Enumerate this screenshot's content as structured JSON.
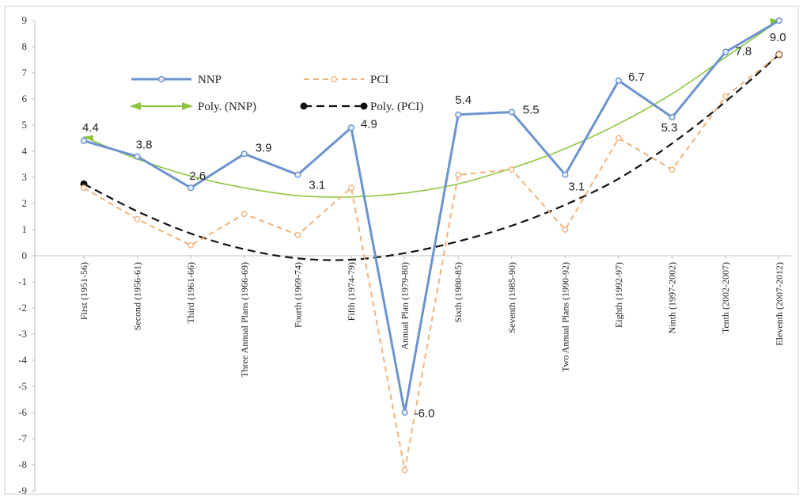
{
  "chart_data": {
    "type": "line",
    "categories": [
      "First (1951-56)",
      "Second (1956-61)",
      "Third (1961-66)",
      "Three Annual Plans (1966-69)",
      "Fourth (1969-74)",
      "Fifth (1974-79)",
      "Annual Plan (1979-80)",
      "Sixth (1980-85)",
      "Seventh (1985-90)",
      "Two Annual Plans (1990-92)",
      "Eighth (1992-97)",
      "Ninth (1997-2002)",
      "Tenth (2002-2007)",
      "Eleventh (2007-2012)"
    ],
    "series": [
      {
        "name": "NNP",
        "values": [
          4.4,
          3.8,
          2.6,
          3.9,
          3.1,
          4.9,
          -6.0,
          5.4,
          5.5,
          3.1,
          6.7,
          5.3,
          7.8,
          9.0
        ],
        "data_labels": [
          "4.4",
          "3.8",
          "2.6",
          "3.9",
          "3.1",
          "4.9",
          "-6.0",
          "5.4",
          "5.5",
          "3.1",
          "6.7",
          "5.3",
          "7.8",
          "9.0"
        ],
        "color": "#6b93cf",
        "style": "solid"
      },
      {
        "name": "PCI",
        "values": [
          2.6,
          1.4,
          0.4,
          1.6,
          0.8,
          2.6,
          -8.2,
          3.1,
          3.3,
          1.0,
          4.5,
          3.3,
          6.1,
          7.7
        ],
        "color": "#f2b27a",
        "style": "dashed"
      },
      {
        "name": "Poly. (NNP)",
        "values": [
          4.55,
          3.7,
          3.05,
          2.6,
          2.3,
          2.25,
          2.4,
          2.75,
          3.35,
          4.1,
          5.05,
          6.2,
          7.6,
          9.0
        ],
        "color": "#8cc63e",
        "style": "solid",
        "trendline": true
      },
      {
        "name": "Poly. (PCI)",
        "values": [
          2.75,
          1.7,
          0.85,
          0.25,
          -0.1,
          -0.15,
          0.1,
          0.55,
          1.15,
          1.95,
          2.95,
          4.3,
          5.9,
          7.7
        ],
        "color": "#111111",
        "style": "dashed",
        "trendline": true
      }
    ],
    "y_ticks": [
      "9",
      "8",
      "7",
      "6",
      "5",
      "4",
      "3",
      "2",
      "1",
      "0",
      "-1",
      "-2",
      "-3",
      "-4",
      "-5",
      "-6",
      "-7",
      "-8",
      "-9"
    ],
    "ylim": [
      -9,
      9
    ],
    "grid": false,
    "legend": "top-left"
  }
}
